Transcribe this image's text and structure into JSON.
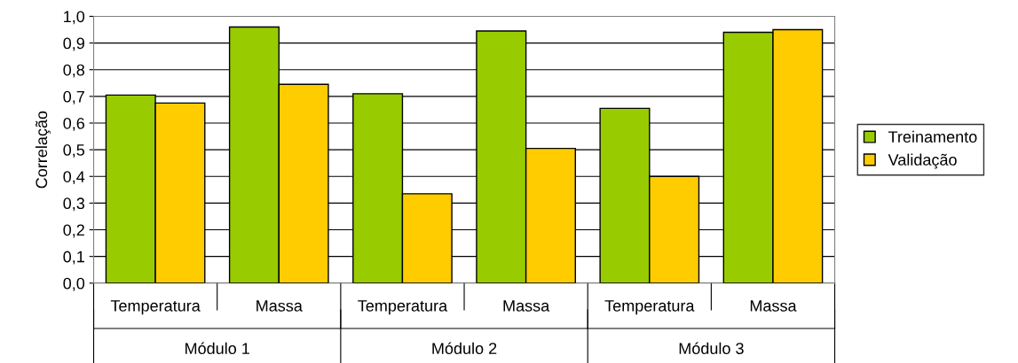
{
  "chart_data": {
    "type": "bar",
    "ylabel": "Correlação",
    "categories": [
      "Temperatura",
      "Massa",
      "Temperatura",
      "Massa",
      "Temperatura",
      "Massa"
    ],
    "series": [
      {
        "name": "Treinamento",
        "color": "#99cc00",
        "values": [
          0.705,
          0.96,
          0.71,
          0.945,
          0.655,
          0.94
        ]
      },
      {
        "name": "Validação",
        "color": "#ffcc00",
        "values": [
          0.675,
          0.745,
          0.335,
          0.505,
          0.4,
          0.95
        ]
      }
    ],
    "annotations": [
      "Módulo 1",
      "Módulo 2",
      "Módulo 3"
    ],
    "ylim": [
      0,
      1
    ],
    "yticks": [
      {
        "value": 0,
        "label": "0,0"
      },
      {
        "value": 0.1,
        "label": "0,1"
      },
      {
        "value": 0.2,
        "label": "0,2"
      },
      {
        "value": 0.3,
        "label": "0,3"
      },
      {
        "value": 0.4,
        "label": "0,4"
      },
      {
        "value": 0.5,
        "label": "0,5"
      },
      {
        "value": 0.6,
        "label": "0,6"
      },
      {
        "value": 0.7,
        "label": "0,7"
      },
      {
        "value": 0.8,
        "label": "0,8"
      },
      {
        "value": 0.9,
        "label": "0,9"
      },
      {
        "value": 1,
        "label": "1,0"
      }
    ],
    "grid": "y",
    "legend": "right"
  }
}
